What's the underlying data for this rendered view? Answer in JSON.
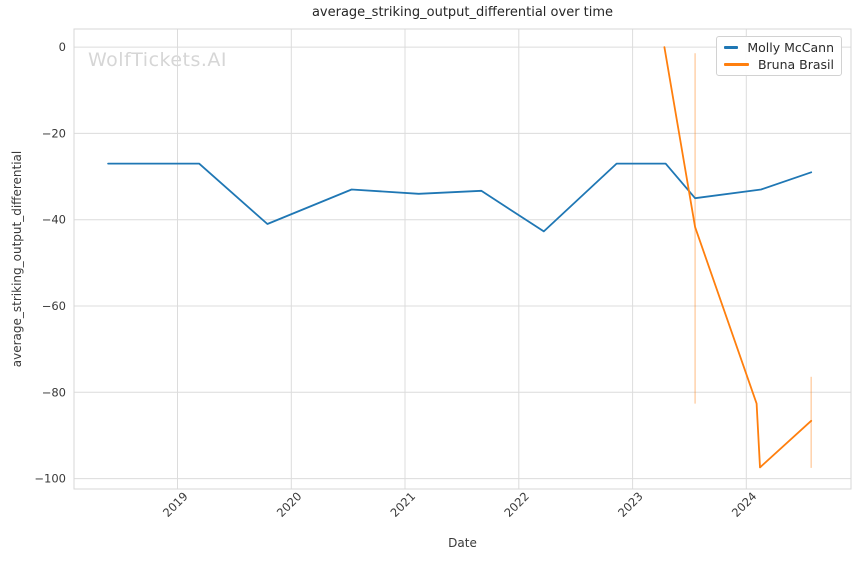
{
  "chart_data": {
    "type": "line",
    "title": "average_striking_output_differential over time",
    "xlabel": "Date",
    "ylabel": "average_striking_output_differential",
    "watermark": "WolfTickets.AI",
    "grid": true,
    "legend_position": "upper right",
    "x_ticks": [
      2019,
      2020,
      2021,
      2022,
      2023,
      2024
    ],
    "x_tick_labels": [
      "2019",
      "2020",
      "2021",
      "2022",
      "2023",
      "2024"
    ],
    "y_ticks": [
      0,
      -20,
      -40,
      -60,
      -80,
      -100
    ],
    "y_tick_labels": [
      "0",
      "−20",
      "−40",
      "−60",
      "−80",
      "−100"
    ],
    "xlim": [
      2018.09,
      2024.92
    ],
    "ylim": [
      -102.4,
      4.2
    ],
    "series": [
      {
        "name": "Molly McCann",
        "color": "#1f77b4",
        "x": [
          2018.39,
          2019.19,
          2019.79,
          2020.53,
          2021.12,
          2021.67,
          2022.22,
          2022.86,
          2023.29,
          2023.55,
          2024.13,
          2024.57
        ],
        "y": [
          -27,
          -27,
          -41,
          -33,
          -34,
          -33.3,
          -42.7,
          -27,
          -27,
          -35,
          -33,
          -29
        ]
      },
      {
        "name": "Bruna Brasil",
        "color": "#ff7f0e",
        "x": [
          2023.28,
          2023.55,
          2024.09,
          2024.12,
          2024.57
        ],
        "y": [
          0,
          -41.7,
          -82.6,
          -97.4,
          -86.6
        ],
        "error_bars": [
          {
            "x": 2023.55,
            "from": -1.4,
            "to": -82.6
          },
          {
            "x": 2024.57,
            "from": -76.4,
            "to": -97.5
          }
        ]
      }
    ],
    "colors": {
      "grid": "#dcdcdc",
      "border": "#d7d7d7",
      "tick_text": "#3a3a3a",
      "title_text": "#262626",
      "watermark": "#d6d6d6",
      "error_bar": "rgba(255,127,14,0.35)"
    }
  }
}
